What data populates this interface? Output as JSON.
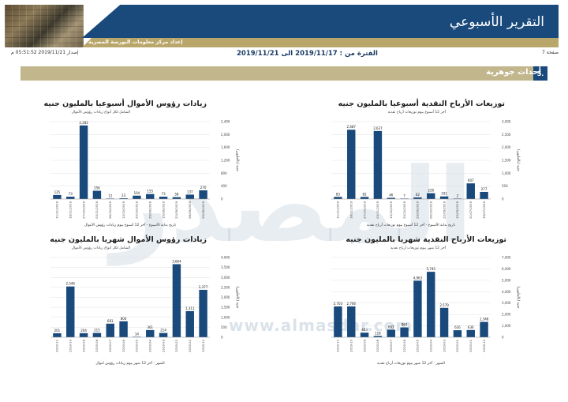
{
  "header": {
    "title": "التقرير الأسبوعي",
    "prepared_by": "إعداد مركز معلومات البورصة المصرية",
    "page": "صفحة 7",
    "issued": "إصدار 2019/11/21 05:51:52 م",
    "period": "الفترة من : 2019/11/17 الى 2019/11/21"
  },
  "section": {
    "number": "5.",
    "title": "أحداث جوهرية"
  },
  "watermark": {
    "text": "المصدر",
    "url": "www.almasdar.com"
  },
  "colors": {
    "bar": "#1a4a7c",
    "header_blue": "#1a4a7c",
    "gold": "#c2b68d"
  },
  "charts": [
    {
      "id": "weekly-dividends",
      "title": "توزيعات الأرباح النقدية أسبوعيا بالمليون جنيه",
      "subtitle": "آخر 12 أسبوع بيوم توزيعات أرباح نقدية",
      "xlabel": "تاريخ بداية الأسبوع - آخر 12 أسبوع بيوم توزيعات أرباح نقدية",
      "ylabel": "جنيه (بالمليون)",
      "chart_data": {
        "type": "bar",
        "categories": [
          "11/11/2019",
          "18/11/2019",
          "27/10/2019",
          "03/11/2019",
          "13/10/2019",
          "20/10/2019",
          "29/09/2019",
          "06/10/2019",
          "22/09/2019",
          "15/09/2019",
          "21/07/2019",
          "18/07/2019"
        ],
        "values": [
          83,
          2687,
          82,
          2637,
          46,
          7,
          62,
          226,
          101,
          2,
          607,
          277
        ],
        "labels": [
          "83",
          "2,687",
          "82",
          "2,637",
          "46",
          "7",
          "62",
          "226",
          "101",
          "2",
          "607",
          "277"
        ],
        "ylim": [
          0,
          3000
        ],
        "ticks": [
          "0",
          "500",
          "1,000",
          "1,500",
          "2,000",
          "2,500",
          "3,000"
        ]
      }
    },
    {
      "id": "weekly-capital",
      "title": "زيادات رؤوس الأموال أسبوعيا بالمليون جنيه",
      "subtitle": "الشامل لكل أنواع زيادات رؤوس الأموال",
      "xlabel": "تاريخ بداية الأسبوع - آخر 12 أسبوع بيوم زيادات رؤوس الأموال",
      "ylabel": "جنيه (بالمليون)",
      "chart_data": {
        "type": "bar",
        "categories": [
          "11/11/2019",
          "18/11/2019",
          "27/10/2019",
          "03/11/2019",
          "06/10/2019",
          "13/10/2019",
          "20/10/2019",
          "29/09/2019",
          "15/09/2019",
          "22/09/2019",
          "08/09/2019",
          "25/08/2019"
        ],
        "values": [
          125,
          73,
          2282,
          256,
          12,
          23,
          104,
          155,
          73,
          58,
          137,
          270
        ],
        "labels": [
          "125",
          "73",
          "2,282",
          "256",
          "12",
          "23",
          "104",
          "155",
          "73",
          "58",
          "137",
          "270"
        ],
        "ylim": [
          0,
          2400
        ],
        "ticks": [
          "0",
          "400",
          "800",
          "1,200",
          "1,600",
          "2,000",
          "2,400"
        ]
      }
    },
    {
      "id": "monthly-dividends",
      "title": "توزيعات الأرباح النقدية شهريا بالمليون جنيه",
      "subtitle": "آخر 12 شهر بيوم توزيعات أرباح نقدية",
      "xlabel": "الشهر - آخر 12 شهر بيوم توزيعات أرباح نقدية",
      "ylabel": "جنيه (بالمليون)",
      "chart_data": {
        "type": "bar",
        "categories": [
          "2019-11",
          "2019-10",
          "2019-09",
          "2019-08",
          "2019-07",
          "2019-06",
          "2019-05",
          "2019-04",
          "2019-03",
          "2019-02",
          "2019-01",
          "2018-12"
        ],
        "values": [
          2703,
          2706,
          403,
          118,
          663,
          863,
          4963,
          5745,
          2579,
          616,
          636,
          1348
        ],
        "labels": [
          "2,703",
          "2,706",
          "403",
          "118",
          "663",
          "863",
          "4,963",
          "5,745",
          "2,579",
          "616",
          "636",
          "1,348"
        ],
        "ylim": [
          0,
          7000
        ],
        "ticks": [
          "0",
          "1,000",
          "2,000",
          "3,000",
          "4,000",
          "5,000",
          "6,000",
          "7,000"
        ]
      }
    },
    {
      "id": "monthly-capital",
      "title": "زيادات رؤوس الأموال شهريا بالمليون جنيه",
      "subtitle": "الشامل لكل أنواع زيادات رؤوس الأموال",
      "xlabel": "الشهر - آخر 12 شهر بيوم زيادات رؤوس اموال",
      "ylabel": "جنيه (بالمليون)",
      "chart_data": {
        "type": "bar",
        "categories": [
          "2019-11",
          "2019-10",
          "2019-09",
          "2019-08",
          "2019-07",
          "2019-06",
          "2019-05",
          "2019-04",
          "2019-03",
          "2019-02",
          "2019-01",
          "2018-12"
        ],
        "values": [
          201,
          2546,
          204,
          215,
          681,
          800,
          14,
          361,
          214,
          3664,
          1311,
          2377
        ],
        "labels": [
          "201",
          "2,546",
          "204",
          "215",
          "681",
          "800",
          "14",
          "361",
          "214",
          "3,664",
          "1,311",
          "2,377"
        ],
        "ylim": [
          0,
          4000
        ],
        "ticks": [
          "0",
          "500",
          "1,000",
          "1,500",
          "2,000",
          "2,500",
          "3,000",
          "3,500",
          "4,000"
        ]
      }
    }
  ]
}
